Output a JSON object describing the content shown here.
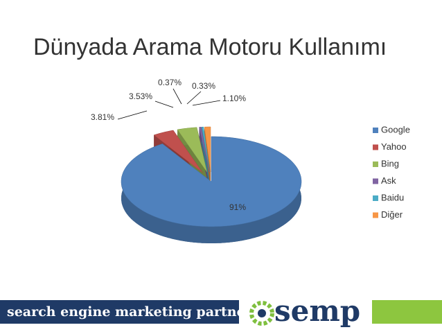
{
  "chart_data": {
    "type": "pie3d",
    "title": "Dünyada Arama Motoru Kullanımı",
    "categories": [
      "Google",
      "Yahoo",
      "Bing",
      "Ask",
      "Baidu",
      "Diğer"
    ],
    "values": [
      91,
      3.81,
      3.53,
      0.37,
      0.33,
      1.1
    ],
    "value_labels": [
      "91%",
      "3.81%",
      "3.53%",
      "0.37%",
      "0.33%",
      "1.10%"
    ],
    "colors": [
      "#4f81bd",
      "#c0504d",
      "#9bbb59",
      "#8064a2",
      "#4bacc6",
      "#f79646"
    ],
    "legend": "right"
  },
  "footer": {
    "tagline": "search engine marketing partner",
    "logo": "semp"
  }
}
